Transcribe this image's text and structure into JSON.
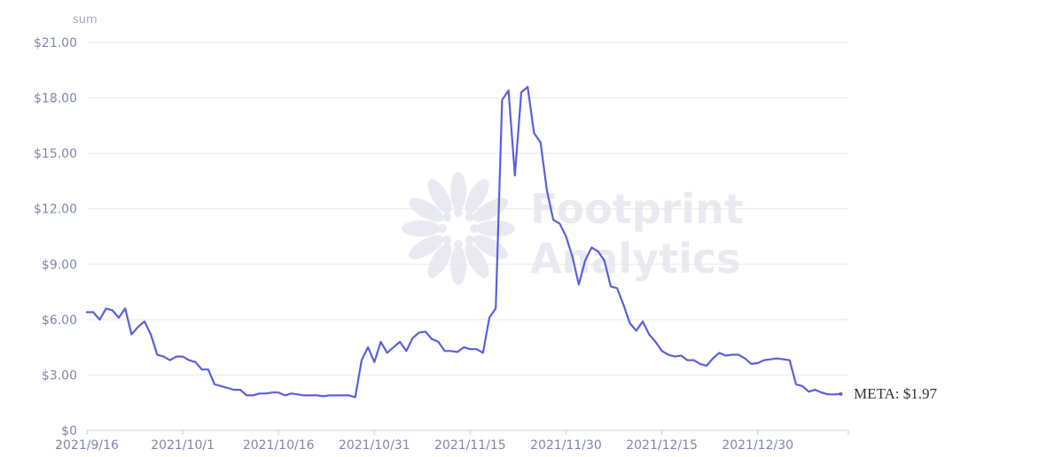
{
  "chart_data": {
    "type": "line",
    "ylabel": "sum",
    "y_ticks": [
      "$0",
      "$3.00",
      "$6.00",
      "$9.00",
      "$12.00",
      "$15.00",
      "$18.00",
      "$21.00"
    ],
    "x_ticks": [
      "2021/9/16",
      "2021/10/1",
      "2021/10/16",
      "2021/10/31",
      "2021/11/15",
      "2021/11/30",
      "2021/12/15",
      "2021/12/30"
    ],
    "ylim": [
      0,
      21
    ],
    "x_start": "2021-09-16",
    "grid": true,
    "series": [
      {
        "name": "META",
        "color": "#5b5fdb",
        "end_label": "META: $1.97",
        "values": [
          6.4,
          6.4,
          6.0,
          6.6,
          6.5,
          6.1,
          6.6,
          5.2,
          5.6,
          5.9,
          5.2,
          4.1,
          4.0,
          3.8,
          4.0,
          4.0,
          3.8,
          3.7,
          3.3,
          3.3,
          2.5,
          2.4,
          2.3,
          2.2,
          2.2,
          1.9,
          1.9,
          2.0,
          2.0,
          2.05,
          2.05,
          1.9,
          2.0,
          1.95,
          1.9,
          1.9,
          1.9,
          1.85,
          1.9,
          1.9,
          1.9,
          1.9,
          1.8,
          3.8,
          4.5,
          3.7,
          4.8,
          4.2,
          4.5,
          4.8,
          4.3,
          5.0,
          5.3,
          5.35,
          4.95,
          4.8,
          4.3,
          4.3,
          4.25,
          4.5,
          4.4,
          4.4,
          4.2,
          6.1,
          6.6,
          17.9,
          18.4,
          13.8,
          18.3,
          18.6,
          16.1,
          15.6,
          13.0,
          11.4,
          11.2,
          10.5,
          9.4,
          7.9,
          9.2,
          9.9,
          9.7,
          9.2,
          7.8,
          7.7,
          6.8,
          5.8,
          5.4,
          5.9,
          5.2,
          4.8,
          4.3,
          4.1,
          4.0,
          4.05,
          3.8,
          3.8,
          3.6,
          3.5,
          3.9,
          4.2,
          4.05,
          4.1,
          4.1,
          3.9,
          3.6,
          3.65,
          3.8,
          3.85,
          3.9,
          3.85,
          3.8,
          2.5,
          2.4,
          2.1,
          2.2,
          2.05,
          1.95,
          1.95,
          1.97
        ]
      }
    ]
  },
  "watermark": {
    "line1": "Footprint",
    "line2": "Analytics"
  }
}
